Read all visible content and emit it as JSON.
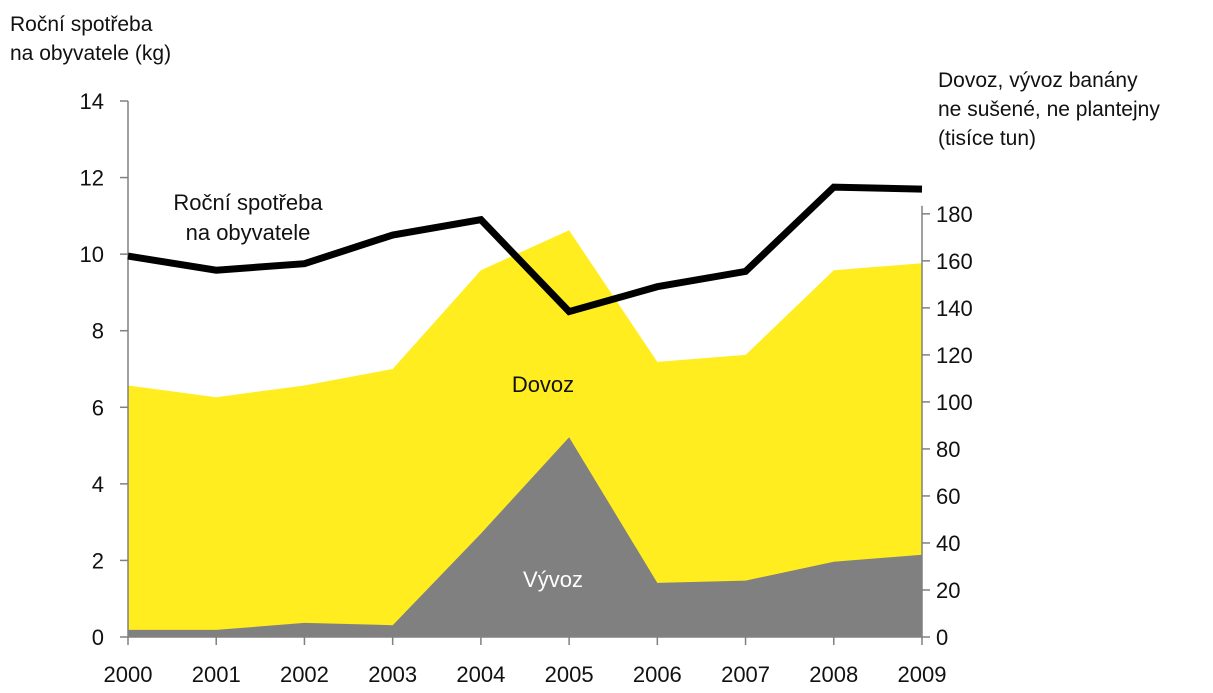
{
  "chart_data": {
    "type": "area",
    "categories": [
      "2000",
      "2001",
      "2002",
      "2003",
      "2004",
      "2005",
      "2006",
      "2007",
      "2008",
      "2009"
    ],
    "ylabel_left": [
      "Roční spotřeba",
      "na obyvatele (kg)"
    ],
    "ylabel_right": [
      "Dovoz, vývoz banány",
      "ne sušené, ne plantejny",
      "(tisíce tun)"
    ],
    "ylim_left": [
      0,
      14
    ],
    "yticks_left": [
      "0",
      "2",
      "4",
      "6",
      "8",
      "10",
      "12",
      "14"
    ],
    "ylim_right": [
      0,
      228
    ],
    "yticks_right": [
      "0",
      "20",
      "40",
      "60",
      "80",
      "100",
      "120",
      "140",
      "160",
      "180"
    ],
    "grid": false,
    "series": [
      {
        "name": "Dovoz",
        "kind": "area",
        "axis": "right",
        "color": "#FFED1F",
        "values": [
          107,
          102,
          107,
          114,
          156,
          173,
          117,
          120,
          156,
          159
        ]
      },
      {
        "name": "Vývoz",
        "kind": "area",
        "axis": "right",
        "color": "#808080",
        "values": [
          3,
          3,
          6,
          5,
          44,
          85,
          23,
          24,
          32,
          35
        ]
      },
      {
        "name": "Roční spotřeba na obyvatele",
        "label_lines": [
          "Roční spotřeba",
          "na obyvatele"
        ],
        "kind": "line",
        "axis": "left",
        "color": "#000000",
        "values": [
          9.95,
          9.58,
          9.75,
          10.5,
          10.9,
          8.5,
          9.15,
          9.55,
          11.75,
          11.7
        ]
      }
    ]
  }
}
